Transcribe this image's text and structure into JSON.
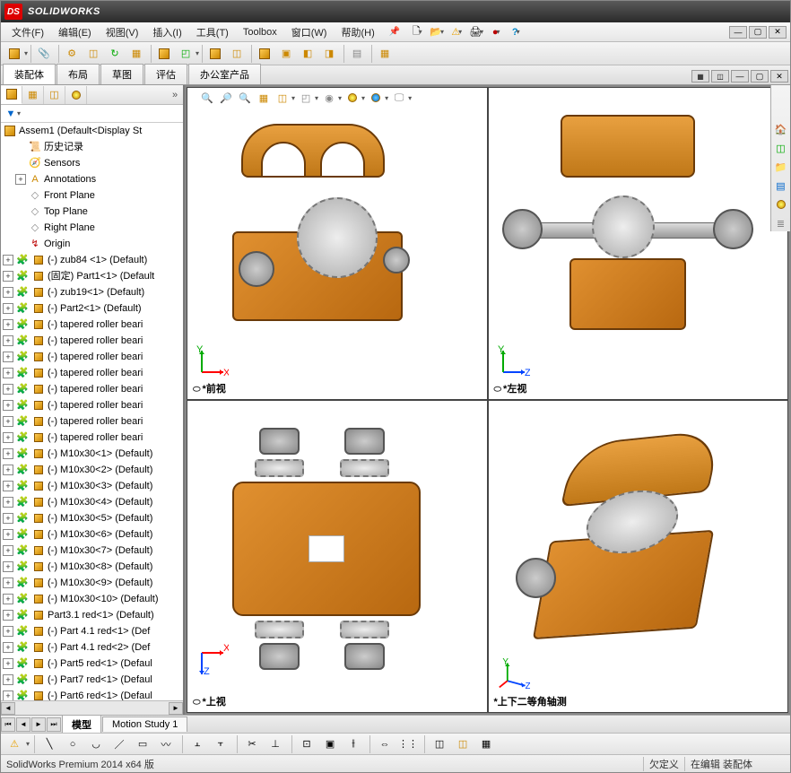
{
  "app": {
    "title": "SOLIDWORKS"
  },
  "menu": {
    "items": [
      "文件(F)",
      "编辑(E)",
      "视图(V)",
      "插入(I)",
      "工具(T)",
      "Toolbox",
      "窗口(W)",
      "帮助(H)"
    ],
    "pin": "📌"
  },
  "win_controls": {
    "min": "—",
    "max": "▢",
    "close": "✕"
  },
  "ribbon_tabs": [
    "装配体",
    "布局",
    "草图",
    "评估",
    "办公室产品"
  ],
  "tree_tabs": [
    "assembly",
    "config",
    "display",
    "appearance"
  ],
  "tree_root": "Assem1  (Default<Display St",
  "tree_items": [
    {
      "ind": 1,
      "exp": "",
      "ico": "hist",
      "label": "历史记录"
    },
    {
      "ind": 1,
      "exp": "",
      "ico": "sens",
      "label": "Sensors"
    },
    {
      "ind": 1,
      "exp": "+",
      "ico": "ann",
      "label": "Annotations"
    },
    {
      "ind": 1,
      "exp": "",
      "ico": "plane",
      "label": "Front Plane"
    },
    {
      "ind": 1,
      "exp": "",
      "ico": "plane",
      "label": "Top Plane"
    },
    {
      "ind": 1,
      "exp": "",
      "ico": "plane",
      "label": "Right Plane"
    },
    {
      "ind": 1,
      "exp": "",
      "ico": "orig",
      "label": "Origin"
    },
    {
      "ind": 0,
      "exp": "+",
      "ico": "part",
      "label": "(-) zub84 <1> (Default)"
    },
    {
      "ind": 0,
      "exp": "+",
      "ico": "part",
      "label": "(固定) Part1<1> (Default"
    },
    {
      "ind": 0,
      "exp": "+",
      "ico": "part",
      "label": "(-) zub19<1> (Default)"
    },
    {
      "ind": 0,
      "exp": "+",
      "ico": "part",
      "label": "(-) Part2<1> (Default)"
    },
    {
      "ind": 0,
      "exp": "+",
      "ico": "part",
      "label": "(-) tapered roller beari"
    },
    {
      "ind": 0,
      "exp": "+",
      "ico": "part",
      "label": "(-) tapered roller beari"
    },
    {
      "ind": 0,
      "exp": "+",
      "ico": "part",
      "label": "(-) tapered roller beari"
    },
    {
      "ind": 0,
      "exp": "+",
      "ico": "part",
      "label": "(-) tapered roller beari"
    },
    {
      "ind": 0,
      "exp": "+",
      "ico": "part",
      "label": "(-) tapered roller beari"
    },
    {
      "ind": 0,
      "exp": "+",
      "ico": "part",
      "label": "(-) tapered roller beari"
    },
    {
      "ind": 0,
      "exp": "+",
      "ico": "part",
      "label": "(-) tapered roller beari"
    },
    {
      "ind": 0,
      "exp": "+",
      "ico": "part",
      "label": "(-) tapered roller beari"
    },
    {
      "ind": 0,
      "exp": "+",
      "ico": "part",
      "label": "(-) M10x30<1> (Default)"
    },
    {
      "ind": 0,
      "exp": "+",
      "ico": "part",
      "label": "(-) M10x30<2> (Default)"
    },
    {
      "ind": 0,
      "exp": "+",
      "ico": "part",
      "label": "(-) M10x30<3> (Default)"
    },
    {
      "ind": 0,
      "exp": "+",
      "ico": "part",
      "label": "(-) M10x30<4> (Default)"
    },
    {
      "ind": 0,
      "exp": "+",
      "ico": "part",
      "label": "(-) M10x30<5> (Default)"
    },
    {
      "ind": 0,
      "exp": "+",
      "ico": "part",
      "label": "(-) M10x30<6> (Default)"
    },
    {
      "ind": 0,
      "exp": "+",
      "ico": "part",
      "label": "(-) M10x30<7> (Default)"
    },
    {
      "ind": 0,
      "exp": "+",
      "ico": "part",
      "label": "(-) M10x30<8> (Default)"
    },
    {
      "ind": 0,
      "exp": "+",
      "ico": "part",
      "label": "(-) M10x30<9> (Default)"
    },
    {
      "ind": 0,
      "exp": "+",
      "ico": "part",
      "label": "(-) M10x30<10> (Default)"
    },
    {
      "ind": 0,
      "exp": "+",
      "ico": "part",
      "label": "Part3.1 red<1> (Default)"
    },
    {
      "ind": 0,
      "exp": "+",
      "ico": "part",
      "label": "(-) Part 4.1 red<1> (Def"
    },
    {
      "ind": 0,
      "exp": "+",
      "ico": "part",
      "label": "(-) Part 4.1 red<2> (Def"
    },
    {
      "ind": 0,
      "exp": "+",
      "ico": "part",
      "label": "(-) Part5 red<1> (Defaul"
    },
    {
      "ind": 0,
      "exp": "+",
      "ico": "part",
      "label": "(-) Part7 red<1> (Defaul"
    },
    {
      "ind": 0,
      "exp": "+",
      "ico": "part",
      "label": "(-) Part6 red<1> (Defaul"
    }
  ],
  "bottom_tabs": [
    "模型",
    "Motion Study 1"
  ],
  "views": {
    "labels": [
      "*前视",
      "*左视",
      "*上视",
      "*上下二等角轴测"
    ],
    "triads": [
      {
        "x": "X",
        "y": "Y",
        "xcol": "#ff0000",
        "ycol": "#00aa00"
      },
      {
        "x": "Z",
        "y": "Y",
        "xcol": "#0044ff",
        "ycol": "#00aa00"
      },
      {
        "x": "X",
        "y": "Z",
        "xcol": "#ff0000",
        "ycol": "#0044ff"
      },
      {
        "x": "Z",
        "y": "Y",
        "xcol": "#0044ff",
        "ycol": "#00aa00",
        "iso": true
      }
    ],
    "model_color": "#d98a20",
    "model_edge": "#6a3a08",
    "metal_color": "#b8b8b8"
  },
  "status": {
    "left": "SolidWorks Premium 2014 x64 版",
    "cells": [
      "欠定义",
      "在编辑 装配体"
    ]
  },
  "icons": {
    "new": "🗋",
    "open": "📂",
    "save": "💾",
    "print": "🖨",
    "warn": "⚠",
    "light": "●",
    "help": "?",
    "zoom_fit": "🔍",
    "zoom_area": "🔎",
    "zoom_prev": "↺",
    "section": "▦",
    "view": "◫",
    "cube": "◰",
    "appear": "●",
    "scene": "●",
    "render": "🖵",
    "filter": "▼",
    "home": "🏠",
    "folder": "📁",
    "layer": "≣",
    "color": "🌈"
  }
}
